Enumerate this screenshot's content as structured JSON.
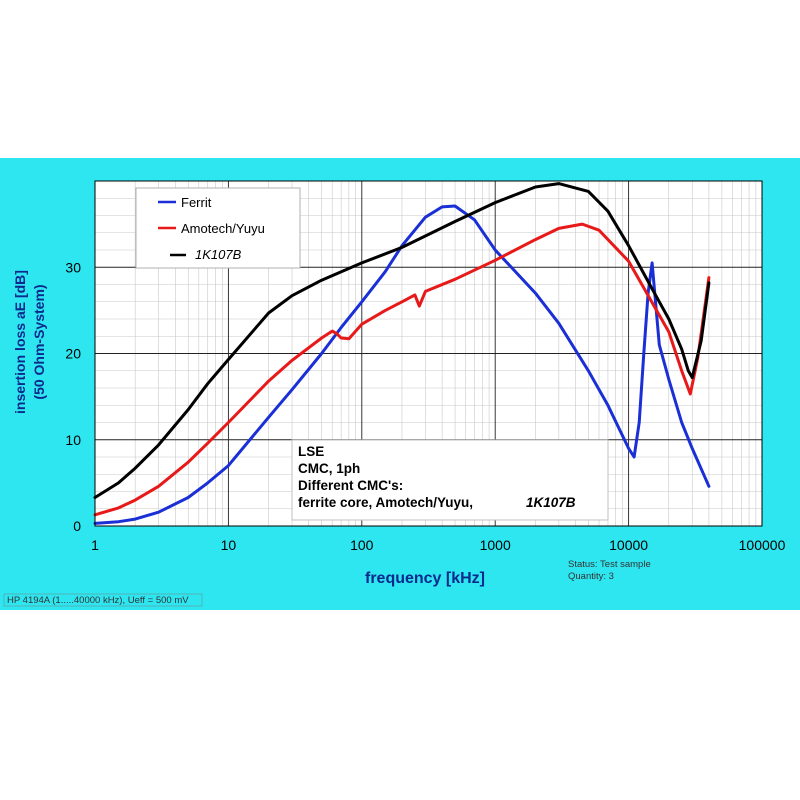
{
  "chart_data": {
    "type": "line",
    "xscale": "log",
    "xlim": [
      1,
      100000
    ],
    "ylim": [
      0,
      40
    ],
    "grid": true,
    "legend_position": "top-left",
    "xlabel": "frequency [kHz]",
    "ylabel_lines": [
      "insertion loss aE  [dB]",
      "(50 Ohm-System)"
    ],
    "x_ticks": [
      1,
      10,
      100,
      1000,
      10000,
      100000
    ],
    "x_tick_labels": [
      "1",
      "10",
      "100",
      "1000",
      "10000",
      "100000"
    ],
    "y_ticks": [
      0,
      10,
      20,
      30
    ],
    "y_tick_labels": [
      "0",
      "10",
      "20",
      "30"
    ],
    "series": [
      {
        "name": "Ferrit",
        "color": "#1a2fd6",
        "x": [
          1,
          1.5,
          2,
          3,
          5,
          7,
          10,
          20,
          30,
          50,
          70,
          100,
          150,
          200,
          300,
          400,
          500,
          700,
          1000,
          2000,
          3000,
          5000,
          7000,
          10000,
          11000,
          12000,
          13000,
          14000,
          15000,
          17000,
          20000,
          25000,
          30000,
          40000
        ],
        "y": [
          0.3,
          0.5,
          0.8,
          1.6,
          3.3,
          5,
          7,
          12.6,
          15.8,
          20,
          23,
          26,
          29.5,
          32.5,
          35.8,
          37,
          37.1,
          35.5,
          32,
          27,
          23.5,
          18,
          14,
          9,
          8,
          12,
          20,
          27,
          30.5,
          21,
          17,
          12,
          9,
          4.6
        ]
      },
      {
        "name": "Amotech/Yuyu",
        "color": "#e81919",
        "x": [
          1,
          1.5,
          2,
          3,
          5,
          7,
          10,
          20,
          30,
          50,
          60,
          65,
          70,
          80,
          100,
          150,
          200,
          250,
          270,
          300,
          500,
          1000,
          2000,
          3000,
          4500,
          6000,
          10000,
          20000,
          25000,
          29000,
          33000,
          40000
        ],
        "y": [
          1.3,
          2.1,
          3,
          4.6,
          7.4,
          9.6,
          12,
          16.8,
          19.2,
          21.8,
          22.6,
          22.3,
          21.8,
          21.7,
          23.4,
          25,
          26,
          26.8,
          25.5,
          27.2,
          28.6,
          30.8,
          33.2,
          34.5,
          35,
          34.3,
          30.7,
          22.5,
          18,
          15.3,
          19.5,
          28.8
        ]
      },
      {
        "name": "1K107B",
        "color": "#000000",
        "x": [
          1,
          1.5,
          2,
          3,
          5,
          7,
          10,
          20,
          30,
          50,
          100,
          200,
          500,
          1000,
          2000,
          3000,
          5000,
          7000,
          10000,
          15000,
          20000,
          25000,
          28000,
          30000,
          35000,
          40000
        ],
        "y": [
          3.3,
          5,
          6.7,
          9.4,
          13.5,
          16.5,
          19.3,
          24.7,
          26.7,
          28.5,
          30.5,
          32.3,
          35.3,
          37.5,
          39.3,
          39.7,
          38.8,
          36.5,
          32.5,
          27.5,
          24,
          20.5,
          18,
          17.2,
          21.5,
          28.2
        ]
      }
    ],
    "annotation_lines": [
      "LSE",
      "CMC, 1ph",
      "Different CMC's:",
      "ferrite core, Amotech/Yuyu,"
    ],
    "annotation_italic": "1K107B",
    "status_lines": [
      "Status: Test sample",
      "Quantity: 3"
    ],
    "footer": "HP 4194A (1.....40000 kHz), Ueff = 500 mV"
  }
}
